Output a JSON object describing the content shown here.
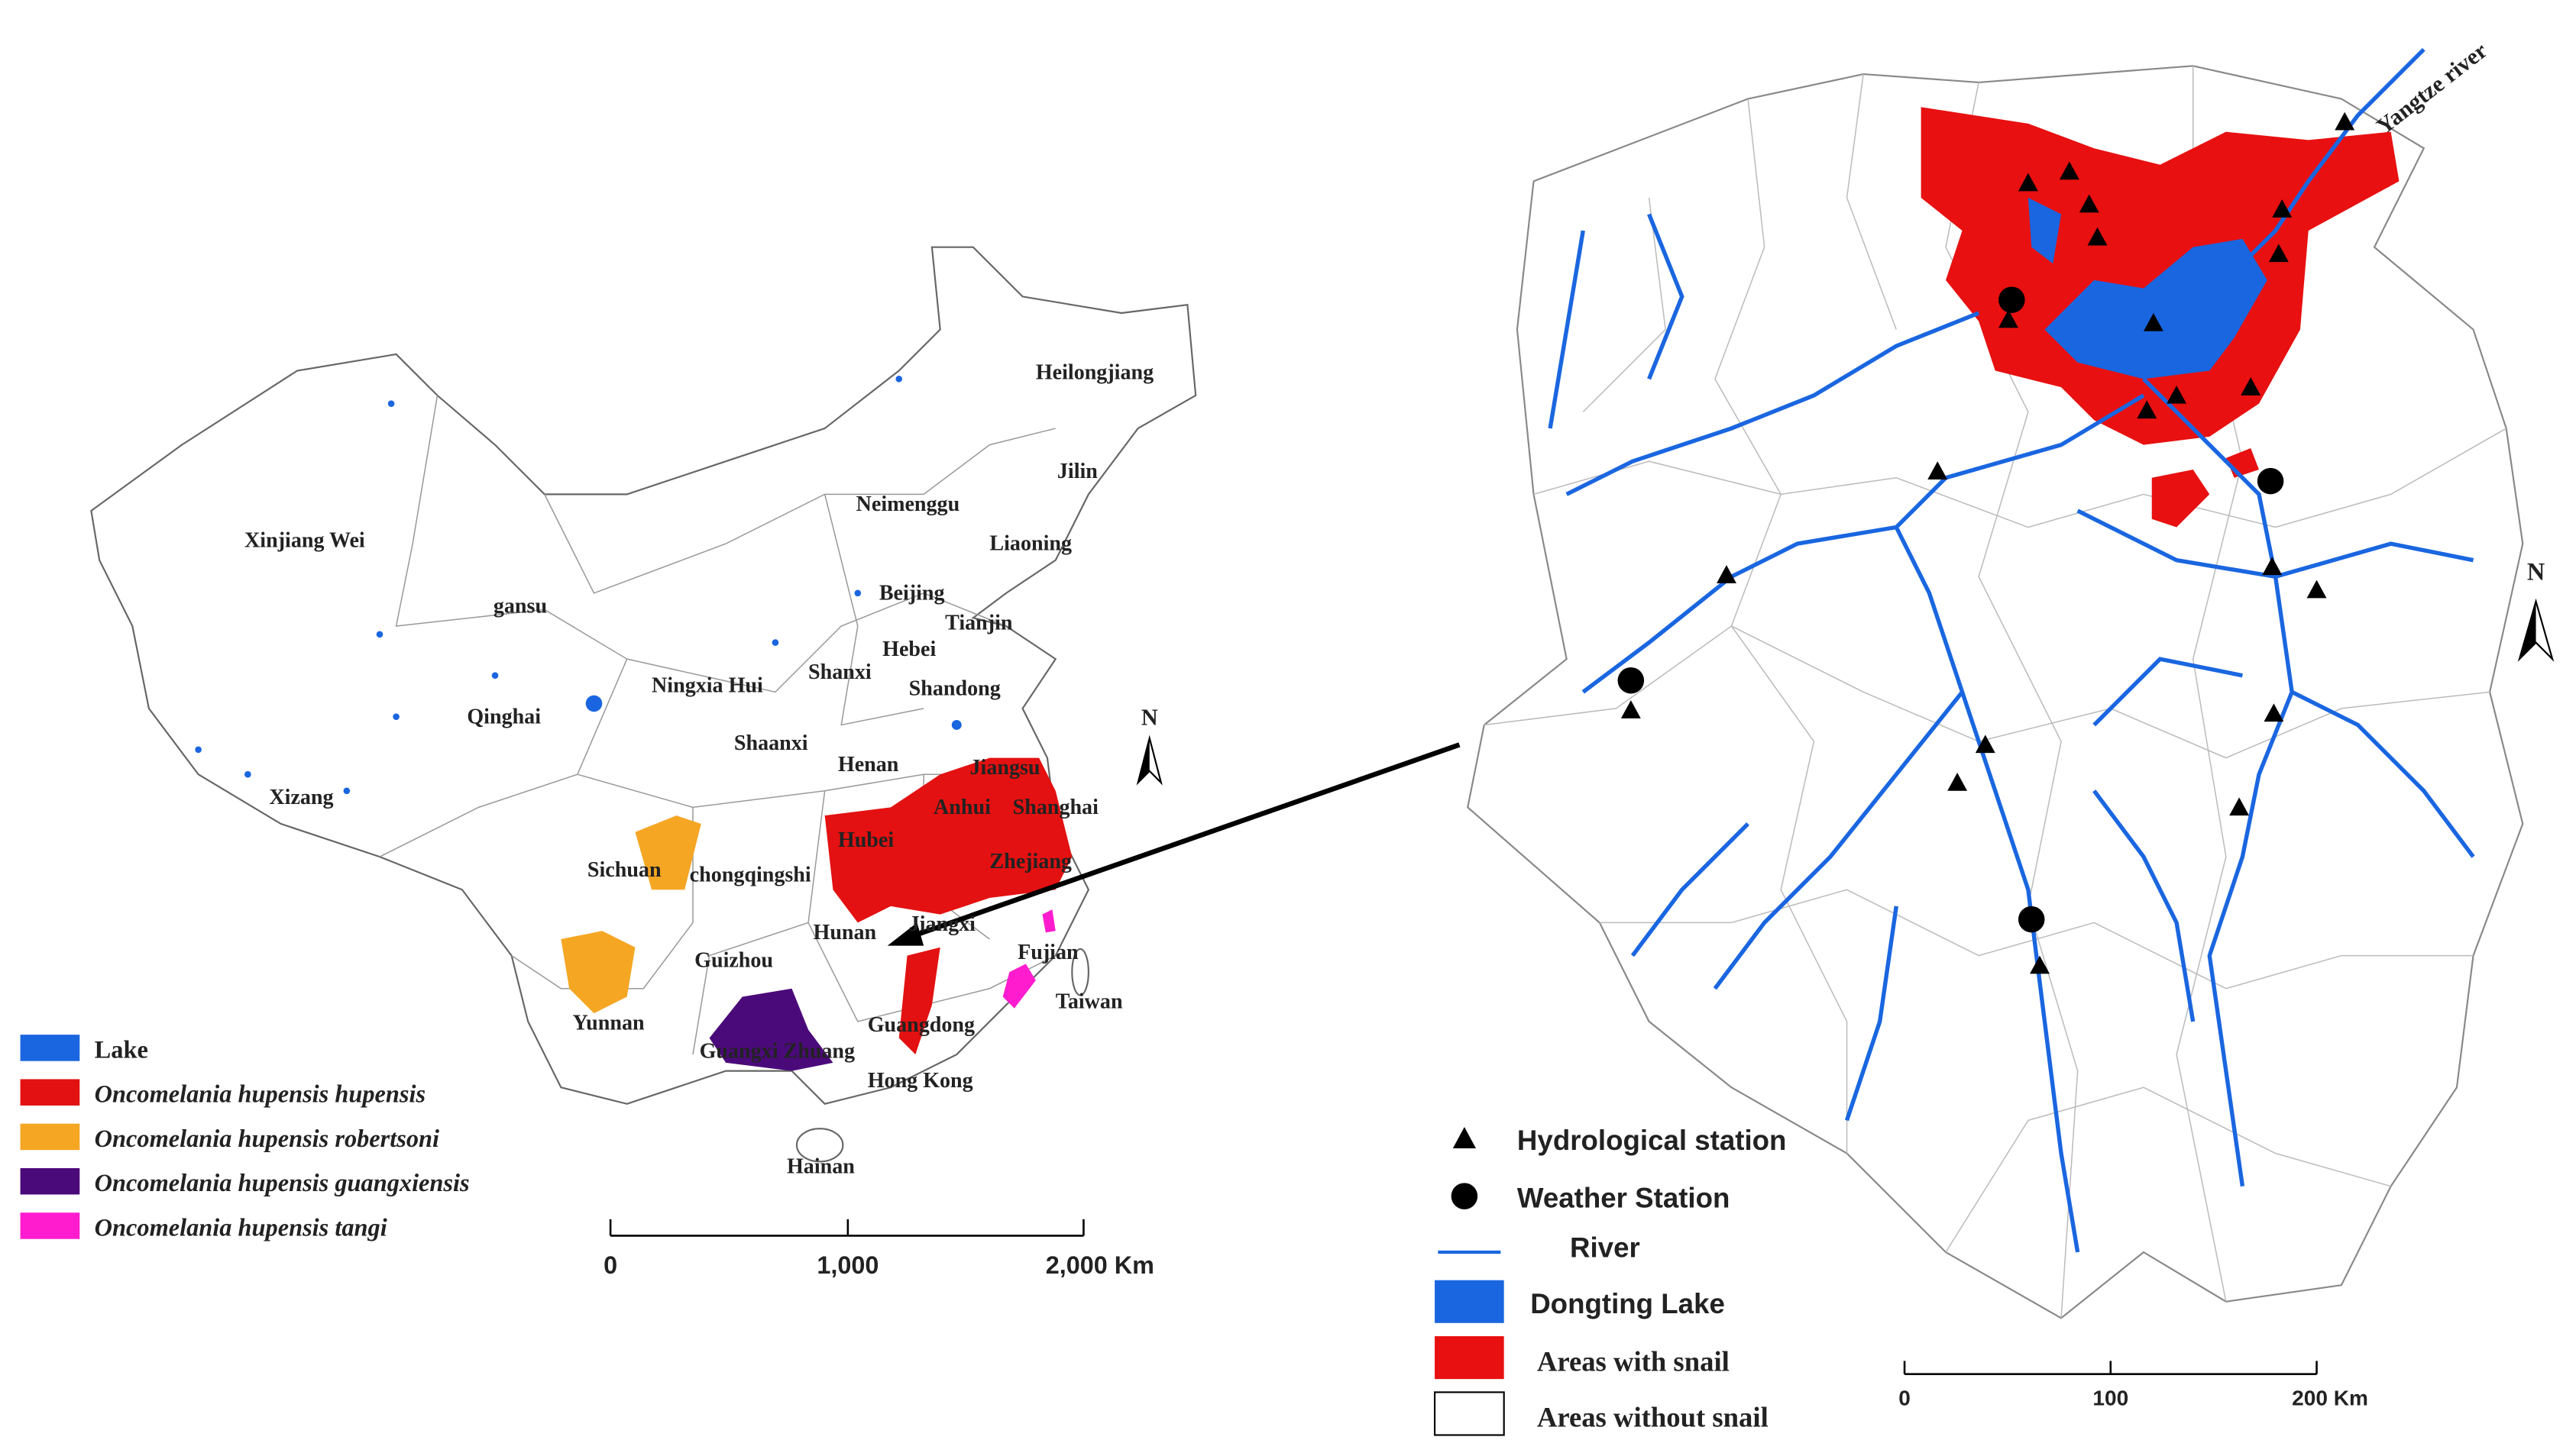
{
  "china_map": {
    "labels": [
      "Heilongjiang",
      "Jilin",
      "Neimenggu",
      "Liaoning",
      "Xinjiang Wei",
      "gansu",
      "Beijing",
      "Tianjin",
      "Hebei",
      "Ningxia Hui",
      "Shanxi",
      "Shandong",
      "Qinghai",
      "Shaanxi",
      "Henan",
      "Jiangsu",
      "Xizang",
      "Anhui",
      "Shanghai",
      "Hubei",
      "Sichuan",
      "chongqingshi",
      "Zhejiang",
      "Jiangxi",
      "Hunan",
      "Fujian",
      "Guizhou",
      "Taiwan",
      "Yunnan",
      "Guangxi Zhuang",
      "Guangdong",
      "Hong Kong",
      "Hainan"
    ],
    "north": "N",
    "legend": [
      "Lake",
      "Oncomelania hupensis hupensis",
      "Oncomelania hupensis robertsoni",
      "Oncomelania hupensis guangxiensis",
      "Oncomelania hupensis tangi"
    ],
    "scale": [
      "0",
      "1,000",
      "2,000 Km"
    ]
  },
  "hunan_map": {
    "river_label": "Yangtze river",
    "north": "N",
    "legend": [
      "Hydrological station",
      "Weather Station",
      "River",
      "Dongting Lake",
      "Areas with snail",
      "Areas without snail"
    ],
    "scale": [
      "0",
      "100",
      "200 Km"
    ]
  }
}
